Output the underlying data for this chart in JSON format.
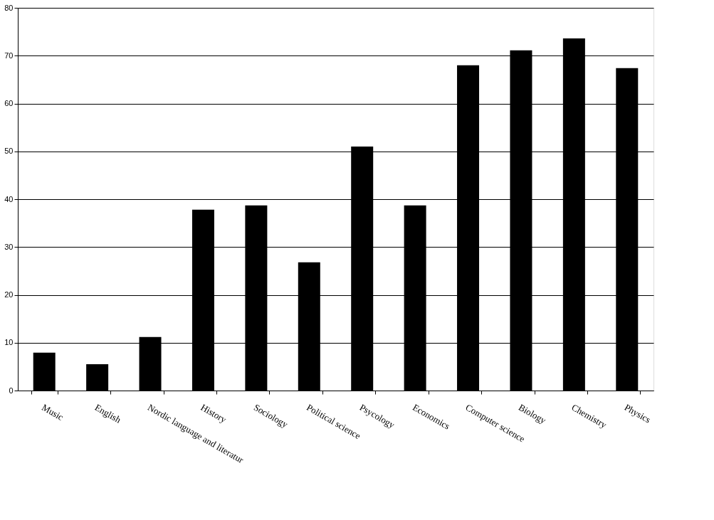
{
  "chart_data": {
    "type": "bar",
    "categories": [
      "Music",
      "English",
      "Nordic language and literatur",
      "History",
      "Sociology",
      "Political science",
      "Psycology",
      "Economics",
      "Computer  science",
      "Biology",
      "Chemistry",
      "Physics"
    ],
    "values": [
      7.9,
      5.5,
      11.2,
      37.8,
      38.7,
      26.8,
      51.0,
      38.7,
      68.0,
      71.1,
      73.6,
      67.4
    ],
    "color": "#000000",
    "ylim": [
      0,
      80
    ],
    "yticks": [
      0,
      10,
      20,
      30,
      40,
      50,
      60,
      70,
      80
    ],
    "grid": "y"
  }
}
